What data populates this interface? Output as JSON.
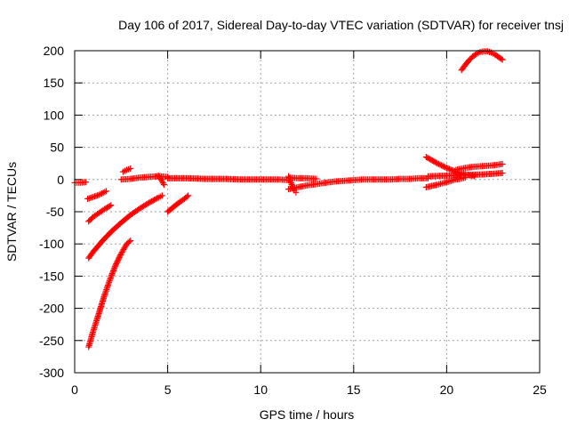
{
  "chart_data": {
    "type": "scatter",
    "title": "Day 106 of 2017, Sidereal Day-to-day VTEC variation (SDTVAR) for receiver tnsj",
    "xlabel": "GPS time / hours",
    "ylabel": "SDTVAR / TECUs",
    "xlim": [
      0,
      25
    ],
    "ylim": [
      -300,
      200
    ],
    "xticks": [
      0,
      5,
      10,
      15,
      20,
      25
    ],
    "yticks": [
      -300,
      -250,
      -200,
      -150,
      -100,
      -50,
      0,
      50,
      100,
      150,
      200
    ],
    "grid": true,
    "marker": "plus",
    "color": "#ff0000",
    "series": [
      {
        "x": [
          0.0,
          0.3,
          0.6
        ],
        "y": [
          -5,
          -5,
          -4
        ]
      },
      {
        "x": [
          0.7,
          1.0,
          1.3,
          1.7
        ],
        "y": [
          -30,
          -27,
          -24,
          -18
        ]
      },
      {
        "x": [
          0.75,
          1.0,
          1.3,
          1.6,
          1.95
        ],
        "y": [
          -65,
          -58,
          -52,
          -46,
          -40
        ]
      },
      {
        "x": [
          2.6,
          2.8,
          3.0
        ],
        "y": [
          12,
          15,
          17
        ]
      },
      {
        "x": [
          0.75,
          1.0,
          1.5,
          2.0,
          2.5,
          3.0,
          3.5,
          4.0,
          4.5,
          4.7
        ],
        "y": [
          -122,
          -112,
          -95,
          -80,
          -67,
          -55,
          -45,
          -36,
          -28,
          -25
        ]
      },
      {
        "x": [
          0.75,
          1.0,
          1.3,
          1.6,
          1.9,
          2.2,
          2.5,
          2.8,
          3.0
        ],
        "y": [
          -260,
          -235,
          -208,
          -180,
          -155,
          -133,
          -115,
          -100,
          -95
        ]
      },
      {
        "x": [
          2.5,
          3.0,
          3.5,
          4.0,
          4.5,
          5.0
        ],
        "y": [
          0,
          1,
          3,
          4,
          5,
          4
        ]
      },
      {
        "x": [
          4.5,
          4.6,
          4.7,
          4.8
        ],
        "y": [
          6,
          2,
          -3,
          -8
        ]
      },
      {
        "x": [
          5.0,
          5.3,
          5.6,
          5.9,
          6.1
        ],
        "y": [
          -50,
          -43,
          -36,
          -30,
          -25
        ]
      },
      {
        "x": [
          5.0,
          6.0,
          7.0,
          8.0,
          9.0,
          10.0,
          11.0,
          11.5
        ],
        "y": [
          2,
          2,
          1,
          1,
          0,
          0,
          0,
          -1
        ]
      },
      {
        "x": [
          11.5,
          11.6,
          11.7,
          11.8,
          11.9
        ],
        "y": [
          5,
          -3,
          -10,
          -17,
          -20
        ]
      },
      {
        "x": [
          11.5,
          12.0,
          12.5,
          13.0,
          13.5,
          14.0,
          14.5,
          15.0,
          15.5,
          16.0,
          16.5
        ],
        "y": [
          -15,
          -12,
          -9,
          -7,
          -5,
          -3,
          -2,
          -1,
          0,
          0,
          0
        ]
      },
      {
        "x": [
          11.5,
          12.0,
          12.5,
          13.0
        ],
        "y": [
          3,
          2,
          2,
          1
        ]
      },
      {
        "x": [
          16.5,
          17.0,
          17.5,
          18.0,
          18.5,
          19.0
        ],
        "y": [
          0,
          0,
          1,
          1,
          2,
          2
        ]
      },
      {
        "x": [
          18.9,
          19.5,
          20.0,
          20.5,
          21.0,
          21.5
        ],
        "y": [
          35,
          25,
          18,
          12,
          8,
          5
        ]
      },
      {
        "x": [
          18.9,
          19.5,
          20.0,
          20.5,
          21.0
        ],
        "y": [
          -12,
          -8,
          -4,
          0,
          3
        ]
      },
      {
        "x": [
          19.0,
          20.0,
          21.0,
          22.0,
          23.0
        ],
        "y": [
          5,
          6,
          7,
          8,
          10
        ]
      },
      {
        "x": [
          20.5,
          21.0,
          21.5,
          22.0,
          22.5,
          23.0
        ],
        "y": [
          15,
          18,
          20,
          21,
          22,
          24
        ]
      },
      {
        "x": [
          20.8,
          21.0,
          21.2,
          21.4,
          21.6,
          21.8,
          22.0,
          22.2,
          22.4,
          22.6,
          22.8,
          23.0
        ],
        "y": [
          170,
          178,
          185,
          191,
          195,
          198,
          199,
          199,
          197,
          194,
          190,
          186
        ]
      }
    ]
  }
}
